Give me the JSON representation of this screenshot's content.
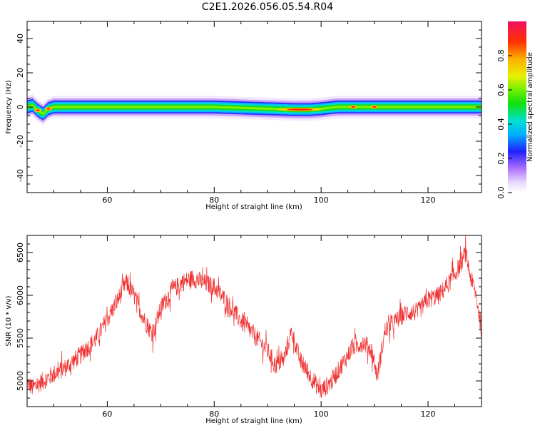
{
  "title": "C2E1.2026.056.05.54.R04",
  "chart_data": [
    {
      "type": "heatmap",
      "xlabel": "Height of straight line (km)",
      "ylabel": "Frequency (Hz)",
      "xlim": [
        45,
        130
      ],
      "ylim": [
        -50,
        50
      ],
      "xticks": [
        "60",
        "80",
        "100",
        "120"
      ],
      "xtick_values": [
        60,
        80,
        100,
        120
      ],
      "yticks": [
        "40",
        "20",
        "0",
        "-20",
        "-40"
      ],
      "ytick_values": [
        40,
        20,
        0,
        -20,
        -40
      ],
      "colorbar": {
        "label": "Normalized spectral amplitude",
        "range": [
          0,
          1
        ],
        "ticks": [
          "0.0",
          "0.2",
          "0.4",
          "0.6",
          "0.8"
        ],
        "tick_values": [
          0,
          0.2,
          0.4,
          0.6,
          0.8
        ]
      },
      "ridge_center_hz": [
        [
          45,
          0
        ],
        [
          46,
          1
        ],
        [
          47,
          -2
        ],
        [
          48,
          -4
        ],
        [
          49,
          -1
        ],
        [
          50,
          0
        ],
        [
          60,
          0
        ],
        [
          70,
          0
        ],
        [
          80,
          0
        ],
        [
          85,
          -0.5
        ],
        [
          90,
          -1
        ],
        [
          95,
          -1.5
        ],
        [
          98,
          -1.5
        ],
        [
          100,
          -1
        ],
        [
          103,
          0
        ],
        [
          110,
          0
        ],
        [
          120,
          0
        ],
        [
          130,
          0
        ]
      ],
      "hotspots_km": [
        47,
        49,
        96,
        106,
        110
      ]
    },
    {
      "type": "line",
      "xlabel": "Height of straight line (km)",
      "ylabel": "SNR (10 * v/v)",
      "xlim": [
        45,
        130
      ],
      "ylim": [
        4700,
        6700
      ],
      "xticks": [
        "60",
        "80",
        "100",
        "120"
      ],
      "xtick_values": [
        60,
        80,
        100,
        120
      ],
      "yticks": [
        "6500",
        "6000",
        "5500",
        "5000"
      ],
      "ytick_values": [
        6500,
        6000,
        5500,
        5000
      ],
      "color": "#f03030",
      "series": [
        {
          "x": [
            45,
            46,
            48,
            50,
            52,
            55,
            58,
            60,
            62,
            63.5,
            65,
            67,
            68.5,
            70,
            72,
            74,
            76,
            78,
            80,
            82,
            85,
            88,
            90,
            91.5,
            93,
            94.5,
            96,
            98,
            100,
            102,
            104,
            106,
            108,
            109.5,
            110.5,
            112,
            114,
            116,
            118,
            120,
            122,
            124,
            126,
            127,
            128,
            129,
            130
          ],
          "y": [
            4980,
            4920,
            5000,
            5080,
            5150,
            5300,
            5500,
            5720,
            5950,
            6150,
            6000,
            5700,
            5550,
            5850,
            6050,
            6150,
            6200,
            6150,
            6100,
            5950,
            5700,
            5500,
            5350,
            5180,
            5250,
            5580,
            5250,
            5050,
            4880,
            5000,
            5200,
            5400,
            5450,
            5350,
            5050,
            5600,
            5700,
            5800,
            5800,
            5950,
            6000,
            6150,
            6350,
            6500,
            6200,
            6000,
            5600
          ]
        }
      ]
    }
  ]
}
